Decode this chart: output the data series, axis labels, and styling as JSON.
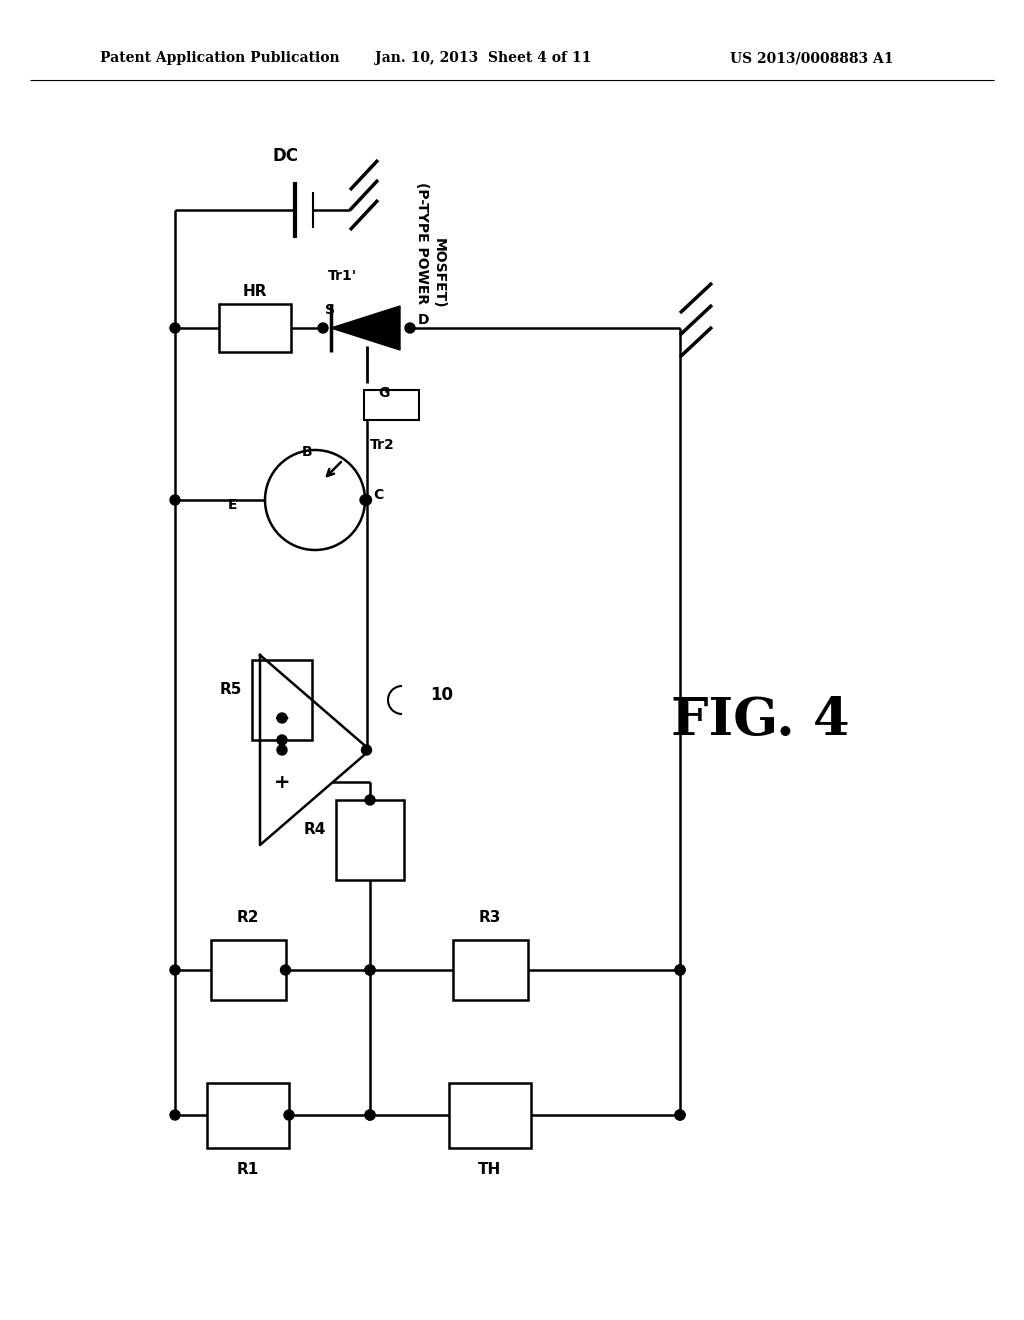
{
  "bg_color": "#ffffff",
  "text_color": "#000000",
  "header_text": "Patent Application Publication",
  "header_date": "Jan. 10, 2013  Sheet 4 of 11",
  "header_patent": "US 2013/0008883 A1",
  "fig_label": "FIG. 4",
  "dc_label": "DC",
  "hr_label": "HR",
  "tr1_label": "Tr1'",
  "mosfet_line1": "(P-TYPE POWER",
  "mosfet_line2": "MOSFET)",
  "tr2_label": "Tr2",
  "r1_label": "R1",
  "r2_label": "R2",
  "r3_label": "R3",
  "r4_label": "R4",
  "r5_label": "R5",
  "th_label": "TH",
  "amp_label": "10",
  "s_label": "S",
  "d_label": "D",
  "g_label": "G",
  "b_label": "B",
  "e_label": "E",
  "c_label": "C",
  "lw": 1.8
}
